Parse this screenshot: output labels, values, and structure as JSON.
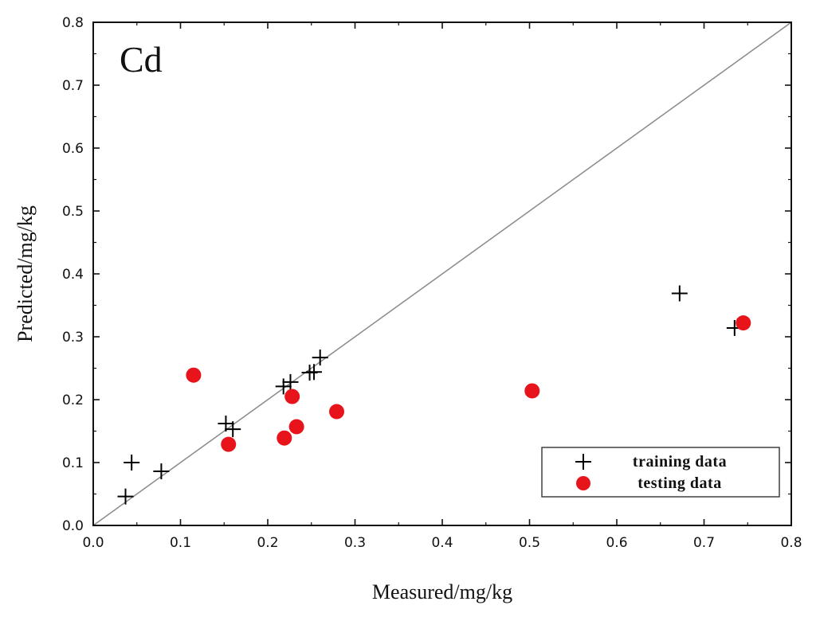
{
  "chart_data": {
    "type": "scatter",
    "panel_label": "Cd",
    "xlabel": "Measured/mg/kg",
    "ylabel": "Predicted/mg/kg",
    "xlim": [
      0.0,
      0.8
    ],
    "ylim": [
      0.0,
      0.8
    ],
    "x_ticks": [
      "0.0",
      "0.1",
      "0.2",
      "0.3",
      "0.4",
      "0.5",
      "0.6",
      "0.7",
      "0.8"
    ],
    "y_ticks": [
      "0.0",
      "0.1",
      "0.2",
      "0.3",
      "0.4",
      "0.5",
      "0.6",
      "0.7",
      "0.8"
    ],
    "reference_line": {
      "type": "1:1",
      "from": [
        0.0,
        0.0
      ],
      "to": [
        0.8,
        0.8
      ]
    },
    "legend_position": "bottom-right",
    "series": [
      {
        "name": "training data",
        "marker": "plus",
        "color": "#000000",
        "points": [
          [
            0.037,
            0.046
          ],
          [
            0.044,
            0.1
          ],
          [
            0.078,
            0.086
          ],
          [
            0.152,
            0.162
          ],
          [
            0.16,
            0.153
          ],
          [
            0.218,
            0.221
          ],
          [
            0.226,
            0.228
          ],
          [
            0.248,
            0.243
          ],
          [
            0.253,
            0.244
          ],
          [
            0.26,
            0.267
          ],
          [
            0.672,
            0.369
          ],
          [
            0.735,
            0.314
          ]
        ]
      },
      {
        "name": "testing data",
        "marker": "circle",
        "color": "#e8141b",
        "points": [
          [
            0.115,
            0.239
          ],
          [
            0.155,
            0.129
          ],
          [
            0.219,
            0.139
          ],
          [
            0.228,
            0.205
          ],
          [
            0.233,
            0.157
          ],
          [
            0.279,
            0.181
          ],
          [
            0.503,
            0.214
          ],
          [
            0.745,
            0.322
          ]
        ]
      }
    ]
  }
}
